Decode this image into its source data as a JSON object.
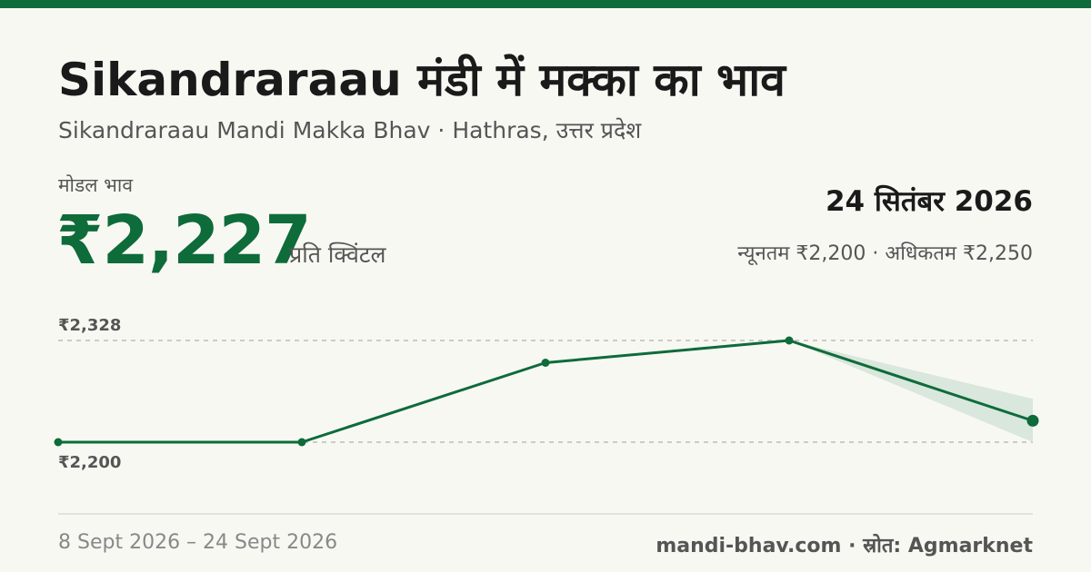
{
  "header": {
    "title": "Sikandraraau मंडी में मक्का का भाव",
    "subtitle": "Sikandraraau Mandi Makka Bhav · Hathras, उत्तर प्रदेश"
  },
  "summary": {
    "modal_label": "मोडल भाव",
    "modal_price": "₹2,227",
    "unit": "प्रति क्विंटल",
    "date": "24 सितंबर 2026",
    "min_max": "न्यूनतम ₹2,200 · अधिकतम ₹2,250"
  },
  "chart_data": {
    "type": "line",
    "x": [
      "8 Sept 2026",
      "",
      "",
      "",
      "24 Sept 2026"
    ],
    "series": [
      {
        "values": [
          2200,
          2200,
          2300,
          2328,
          2227
        ]
      }
    ],
    "band": {
      "lower": 2200,
      "upper": 2250,
      "index": 4
    },
    "ylim": [
      2200,
      2328
    ],
    "ytick_labels": {
      "top": "₹2,328",
      "bottom": "₹2,200"
    },
    "grid": true,
    "colors": {
      "line": "#0e6b3a",
      "band": "#cfe2d6"
    }
  },
  "footer": {
    "date_range": "8 Sept 2026 – 24 Sept 2026",
    "source": "mandi-bhav.com · स्रोत: Agmarknet"
  }
}
